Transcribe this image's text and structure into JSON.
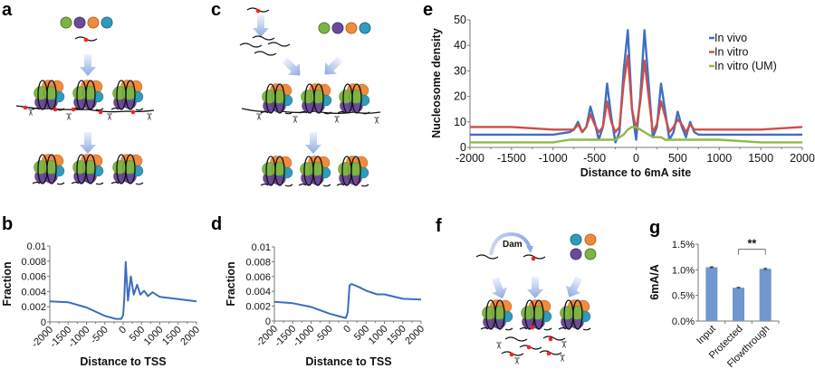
{
  "panels": {
    "a": "a",
    "b": "b",
    "c": "c",
    "d": "d",
    "e": "e",
    "f": "f",
    "g": "g"
  },
  "diagram": {
    "dam_label": "Dam",
    "histone_colors": {
      "green": "#7db544",
      "purple": "#6b4a9b",
      "orange": "#f28a3c",
      "teal": "#2f9bbd"
    },
    "methyl_mark_color": "#ff2020",
    "arrow_color": "#8eaae3",
    "icons": [
      "histone-octamer",
      "nucleosome",
      "dna-fragment",
      "scissors-icon",
      "arrow"
    ]
  },
  "chart_data": [
    {
      "panel": "b",
      "type": "line",
      "xlabel": "Distance to TSS",
      "ylabel": "Fraction",
      "xlim": [
        -2000,
        2000
      ],
      "ylim": [
        0,
        0.01
      ],
      "xticks": [
        "-2000",
        "-1500",
        "-1000",
        "-500",
        "0",
        "500",
        "1000",
        "1500",
        "2000"
      ],
      "yticks": [
        "0",
        "0.002",
        "0.004",
        "0.006",
        "0.008",
        "0.01"
      ],
      "grid": false,
      "series": [
        {
          "color": "#3d6cc0",
          "x": [
            -2000,
            -1500,
            -1000,
            -500,
            -200,
            -50,
            0,
            30,
            70,
            130,
            210,
            290,
            380,
            470,
            570,
            680,
            800,
            1000,
            1500,
            2000
          ],
          "y": [
            0.0027,
            0.0026,
            0.0019,
            0.0008,
            0.0004,
            0.0004,
            0.0009,
            0.003,
            0.0079,
            0.0028,
            0.006,
            0.0036,
            0.0049,
            0.0036,
            0.0041,
            0.0034,
            0.0039,
            0.0033,
            0.003,
            0.0027
          ]
        }
      ]
    },
    {
      "panel": "d",
      "type": "line",
      "xlabel": "Distance to TSS",
      "ylabel": "Fraction",
      "xlim": [
        -2000,
        2000
      ],
      "ylim": [
        0,
        0.01
      ],
      "xticks": [
        "-2000",
        "-1500",
        "-1000",
        "-500",
        "0",
        "500",
        "1000",
        "1500",
        "2000"
      ],
      "yticks": [
        "0",
        "0.002",
        "0.004",
        "0.006",
        "0.008",
        "0.01"
      ],
      "grid": false,
      "series": [
        {
          "color": "#3d6cc0",
          "x": [
            -2000,
            -1500,
            -1000,
            -500,
            -200,
            -50,
            0,
            50,
            100,
            300,
            500,
            800,
            1000,
            1500,
            2000
          ],
          "y": [
            0.0026,
            0.0024,
            0.0019,
            0.001,
            0.0006,
            0.0004,
            0.0012,
            0.0048,
            0.005,
            0.0046,
            0.0041,
            0.0036,
            0.0036,
            0.003,
            0.0029
          ]
        }
      ]
    },
    {
      "panel": "e",
      "type": "line",
      "xlabel": "Distance to 6mA site",
      "ylabel": "Nucleosome density",
      "xlim": [
        -2000,
        2000
      ],
      "ylim": [
        0,
        50
      ],
      "xticks": [
        "-2000",
        "-1500",
        "-1000",
        "-500",
        "0",
        "500",
        "1000",
        "1500",
        "2000"
      ],
      "yticks": [
        "0",
        "10",
        "20",
        "30",
        "40",
        "50"
      ],
      "grid": false,
      "legend": "top-right",
      "x": [
        -2000,
        -1500,
        -1000,
        -800,
        -750,
        -700,
        -650,
        -600,
        -550,
        -500,
        -450,
        -400,
        -350,
        -300,
        -250,
        -200,
        -150,
        -100,
        -50,
        0,
        50,
        100,
        150,
        200,
        250,
        300,
        350,
        400,
        450,
        500,
        550,
        600,
        650,
        700,
        750,
        800,
        1000,
        1500,
        2000
      ],
      "series": [
        {
          "name": "In vivo",
          "color": "#3f6fc2",
          "values": [
            5,
            5,
            5,
            6,
            7,
            10,
            6,
            8,
            16,
            10,
            3,
            8,
            25,
            12,
            2,
            6,
            30,
            46,
            15,
            3,
            20,
            46,
            25,
            4,
            8,
            25,
            14,
            3,
            6,
            14,
            8,
            4,
            10,
            6,
            5,
            5,
            5,
            5,
            5
          ]
        },
        {
          "name": "In vitro",
          "color": "#c9504c",
          "values": [
            8,
            8,
            7,
            7,
            7,
            9,
            6,
            8,
            13,
            9,
            6,
            8,
            18,
            10,
            6,
            8,
            25,
            36,
            15,
            7,
            18,
            34,
            20,
            6,
            9,
            18,
            12,
            6,
            8,
            11,
            9,
            6,
            9,
            7,
            7,
            7,
            7,
            7,
            8
          ]
        },
        {
          "name": "In vitro (UM)",
          "color": "#8dbb48",
          "values": [
            2,
            2,
            2,
            3,
            3,
            3,
            3,
            3,
            3,
            3,
            3,
            3,
            3,
            3,
            3,
            4,
            5,
            7,
            8,
            8,
            7,
            6,
            5,
            4,
            4,
            4,
            3,
            3,
            3,
            3,
            3,
            3,
            3,
            3,
            3,
            3,
            3,
            2,
            2
          ]
        }
      ]
    },
    {
      "panel": "g",
      "type": "bar",
      "ylabel": "6mA/A",
      "categories": [
        "Input",
        "Protected",
        "Flowthrough"
      ],
      "values": [
        1.05,
        0.65,
        1.02
      ],
      "errors": [
        0.01,
        0.01,
        0.015
      ],
      "unit": "%",
      "ylim": [
        0,
        1.5
      ],
      "yticks": [
        "0.0%",
        "0.5%",
        "1.0%",
        "1.5%"
      ],
      "bar_color": "#7097cf",
      "significance": {
        "between": [
          "Protected",
          "Flowthrough"
        ],
        "label": "**"
      }
    }
  ]
}
